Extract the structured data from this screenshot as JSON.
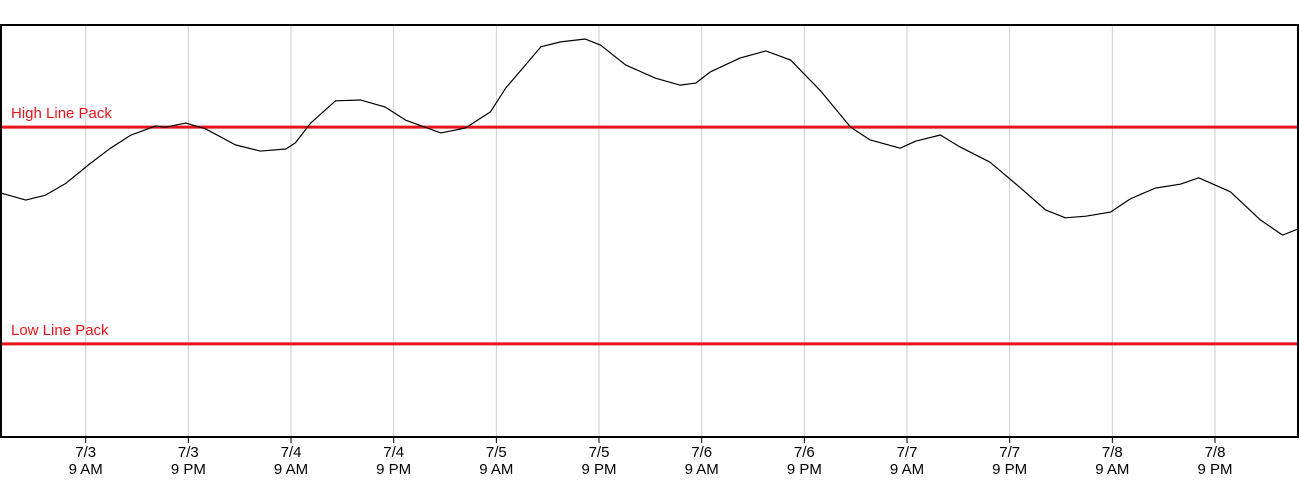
{
  "chart_data": {
    "type": "line",
    "xlim": [
      -9.9,
      141.7
    ],
    "ylim": [
      0,
      100
    ],
    "xticks": [
      {
        "value": 0,
        "label": [
          "7/3",
          "9 AM"
        ]
      },
      {
        "value": 12,
        "label": [
          "7/3",
          "9 PM"
        ]
      },
      {
        "value": 24,
        "label": [
          "7/4",
          "9 AM"
        ]
      },
      {
        "value": 36,
        "label": [
          "7/4",
          "9 PM"
        ]
      },
      {
        "value": 48,
        "label": [
          "7/5",
          "9 AM"
        ]
      },
      {
        "value": 60,
        "label": [
          "7/5",
          "9 PM"
        ]
      },
      {
        "value": 72,
        "label": [
          "7/6",
          "9 AM"
        ]
      },
      {
        "value": 84,
        "label": [
          "7/6",
          "9 PM"
        ]
      },
      {
        "value": 96,
        "label": [
          "7/7",
          "9 AM"
        ]
      },
      {
        "value": 108,
        "label": [
          "7/7",
          "9 PM"
        ]
      },
      {
        "value": 120,
        "label": [
          "7/8",
          "9 AM"
        ]
      },
      {
        "value": 132,
        "label": [
          "7/8",
          "9 PM"
        ]
      }
    ],
    "grid": true,
    "series": [
      {
        "color": "#000000",
        "x": [
          -9.9,
          -7.0,
          -4.7,
          -2.3,
          0.6,
          2.9,
          5.3,
          8.2,
          9.3,
          11.7,
          14.0,
          17.5,
          20.4,
          23.4,
          24.5,
          26.3,
          29.2,
          32.1,
          35.0,
          37.4,
          41.5,
          44.4,
          47.3,
          49.1,
          51.4,
          53.2,
          55.5,
          58.4,
          60.2,
          63.1,
          66.6,
          69.5,
          71.3,
          73.0,
          76.5,
          79.5,
          82.4,
          85.9,
          89.4,
          91.7,
          95.2,
          97.0,
          99.9,
          102.2,
          105.7,
          109.3,
          112.2,
          114.5,
          116.9,
          119.8,
          122.1,
          125.0,
          128.0,
          130.1,
          133.8,
          137.3,
          139.9,
          141.7
        ],
        "values": [
          59.2,
          57.5,
          58.7,
          61.6,
          66.5,
          70.1,
          73.3,
          75.5,
          75.2,
          76.2,
          74.8,
          70.9,
          69.4,
          69.9,
          71.4,
          76.2,
          81.6,
          81.8,
          80.1,
          76.9,
          73.8,
          75.0,
          78.9,
          84.7,
          90.3,
          94.7,
          95.9,
          96.6,
          95.1,
          90.3,
          87.1,
          85.4,
          85.9,
          88.6,
          92.0,
          93.7,
          91.5,
          84.0,
          75.2,
          72.1,
          70.1,
          71.8,
          73.3,
          70.4,
          66.7,
          60.4,
          55.1,
          53.2,
          53.6,
          54.6,
          57.8,
          60.4,
          61.4,
          62.9,
          59.5,
          52.7,
          49.0,
          50.5
        ]
      }
    ],
    "reference_lines": [
      {
        "label": "High Line Pack",
        "value": 75.2,
        "color": "#e8141c"
      },
      {
        "label": "Low Line Pack",
        "value": 22.6,
        "color": "#e8141c"
      }
    ]
  }
}
